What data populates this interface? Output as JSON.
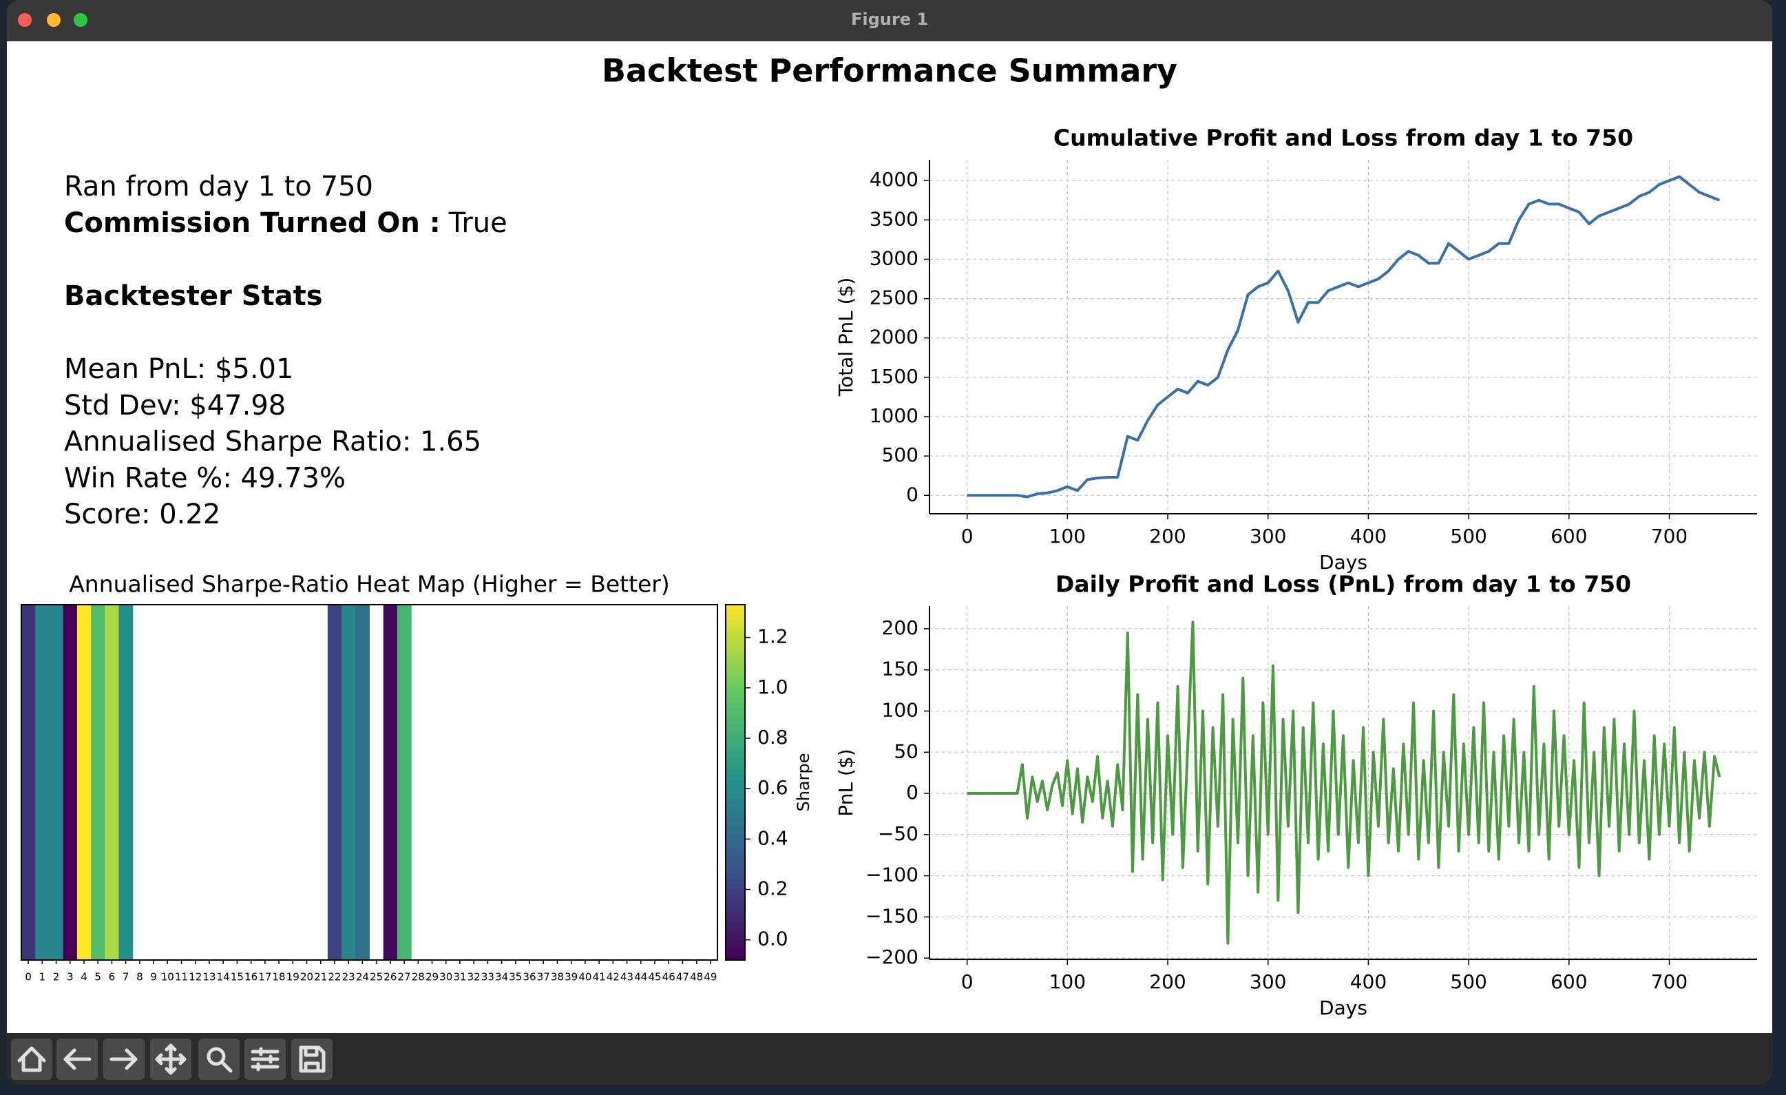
{
  "window": {
    "title": "Figure 1"
  },
  "figure": {
    "title": "Backtest Performance Summary"
  },
  "summary": {
    "run": "Ran from day 1 to 750",
    "commission_label": "Commission Turned On :",
    "commission_value": "True",
    "stats_title": "Backtester Stats",
    "stats": [
      "Mean PnL: $5.01",
      "Std Dev: $47.98",
      "Annualised Sharpe Ratio: 1.65",
      "Win Rate %: 49.73%",
      "Score: 0.22"
    ]
  },
  "chart_data": [
    {
      "type": "heatmap",
      "title": "Annualised Sharpe-Ratio Heat Map (Higher = Better)",
      "categories": [
        0,
        1,
        2,
        3,
        4,
        5,
        6,
        7,
        8,
        9,
        10,
        11,
        12,
        13,
        14,
        15,
        16,
        17,
        18,
        19,
        20,
        21,
        22,
        23,
        24,
        25,
        26,
        27,
        28,
        29,
        30,
        31,
        32,
        33,
        34,
        35,
        36,
        37,
        38,
        39,
        40,
        41,
        42,
        43,
        44,
        45,
        46,
        47,
        48,
        49
      ],
      "values": [
        0.15,
        0.55,
        0.55,
        -0.08,
        1.33,
        0.9,
        1.15,
        0.6,
        null,
        null,
        null,
        null,
        null,
        null,
        null,
        null,
        null,
        null,
        null,
        null,
        null,
        null,
        0.2,
        0.55,
        0.45,
        null,
        -0.05,
        0.85,
        null,
        null,
        null,
        null,
        null,
        null,
        null,
        null,
        null,
        null,
        null,
        null,
        null,
        null,
        null,
        null,
        null,
        null,
        null,
        null,
        null,
        null
      ],
      "colormap": "viridis",
      "clim": [
        -0.08,
        1.33
      ],
      "colorbar_label": "Sharpe",
      "colorbar_ticks": [
        {
          "value": 0,
          "label": "0.0"
        },
        0.2,
        0.4,
        0.6,
        0.8,
        {
          "value": 1,
          "label": "1.0"
        },
        1.2
      ]
    },
    {
      "type": "line",
      "title": "Cumulative Profit and Loss from day 1 to 750",
      "xlabel": "Days",
      "ylabel": "Total PnL ($)",
      "color": "#3a70a8",
      "grid": true,
      "x": [
        0,
        10,
        20,
        30,
        40,
        50,
        60,
        70,
        80,
        90,
        100,
        110,
        120,
        130,
        140,
        150,
        160,
        170,
        180,
        190,
        200,
        210,
        220,
        230,
        240,
        250,
        260,
        270,
        280,
        290,
        300,
        310,
        320,
        330,
        340,
        350,
        360,
        370,
        380,
        390,
        400,
        410,
        420,
        430,
        440,
        450,
        460,
        470,
        480,
        490,
        500,
        510,
        520,
        530,
        540,
        550,
        560,
        570,
        580,
        590,
        600,
        610,
        620,
        630,
        640,
        650,
        660,
        670,
        680,
        690,
        700,
        710,
        720,
        730,
        740,
        750
      ],
      "values": [
        0,
        0,
        0,
        0,
        0,
        0,
        -20,
        20,
        30,
        60,
        110,
        60,
        200,
        220,
        230,
        230,
        750,
        700,
        950,
        1150,
        1250,
        1350,
        1300,
        1450,
        1400,
        1500,
        1850,
        2100,
        2550,
        2650,
        2700,
        2850,
        2600,
        2200,
        2450,
        2450,
        2600,
        2650,
        2700,
        2650,
        2700,
        2750,
        2850,
        3000,
        3100,
        3050,
        2950,
        2950,
        3200,
        3100,
        3000,
        3050,
        3100,
        3200,
        3200,
        3500,
        3700,
        3750,
        3700,
        3700,
        3650,
        3600,
        3450,
        3550,
        3600,
        3650,
        3700,
        3800,
        3850,
        3950,
        4000,
        4050,
        3950,
        3850,
        3800,
        3750
      ],
      "xlim": [
        -37.5,
        787.5
      ],
      "ylim": [
        -234,
        4264
      ],
      "xticks": [
        0,
        100,
        200,
        300,
        400,
        500,
        600,
        700
      ],
      "yticks": [
        0,
        500,
        1000,
        1500,
        2000,
        2500,
        3000,
        3500,
        4000
      ]
    },
    {
      "type": "line",
      "title": "Daily Profit and Loss (PnL) from day 1 to 750",
      "xlabel": "Days",
      "ylabel": "PnL ($)",
      "color": "#4e9a43",
      "grid": true,
      "x": [
        0,
        5,
        10,
        15,
        20,
        25,
        30,
        35,
        40,
        45,
        50,
        55,
        60,
        65,
        70,
        75,
        80,
        85,
        90,
        95,
        100,
        105,
        110,
        115,
        120,
        125,
        130,
        135,
        140,
        145,
        150,
        155,
        160,
        165,
        170,
        175,
        180,
        185,
        190,
        195,
        200,
        205,
        210,
        215,
        220,
        225,
        230,
        235,
        240,
        245,
        250,
        255,
        260,
        265,
        270,
        275,
        280,
        285,
        290,
        295,
        300,
        305,
        310,
        315,
        320,
        325,
        330,
        335,
        340,
        345,
        350,
        355,
        360,
        365,
        370,
        375,
        380,
        385,
        390,
        395,
        400,
        405,
        410,
        415,
        420,
        425,
        430,
        435,
        440,
        445,
        450,
        455,
        460,
        465,
        470,
        475,
        480,
        485,
        490,
        495,
        500,
        505,
        510,
        515,
        520,
        525,
        530,
        535,
        540,
        545,
        550,
        555,
        560,
        565,
        570,
        575,
        580,
        585,
        590,
        595,
        600,
        605,
        610,
        615,
        620,
        625,
        630,
        635,
        640,
        645,
        650,
        655,
        660,
        665,
        670,
        675,
        680,
        685,
        690,
        695,
        700,
        705,
        710,
        715,
        720,
        725,
        730,
        735,
        740,
        745,
        750
      ],
      "values": [
        0,
        0,
        0,
        0,
        0,
        0,
        0,
        0,
        0,
        0,
        0,
        35,
        -30,
        20,
        -10,
        15,
        -20,
        10,
        25,
        -15,
        40,
        -25,
        30,
        -35,
        20,
        -10,
        45,
        -30,
        15,
        -40,
        35,
        -20,
        195,
        -95,
        120,
        -80,
        90,
        -60,
        110,
        -105,
        70,
        -50,
        130,
        -90,
        60,
        208,
        -70,
        100,
        -110,
        80,
        -40,
        120,
        -182,
        90,
        -60,
        140,
        -100,
        70,
        -120,
        110,
        -50,
        155,
        -130,
        90,
        -40,
        100,
        -145,
        80,
        -60,
        110,
        -80,
        60,
        -70,
        100,
        -50,
        70,
        -90,
        40,
        -60,
        80,
        -100,
        50,
        -40,
        90,
        -60,
        30,
        -70,
        60,
        -50,
        110,
        -80,
        40,
        -60,
        100,
        -90,
        50,
        -40,
        120,
        -70,
        60,
        -50,
        80,
        -60,
        110,
        -70,
        50,
        -80,
        70,
        -40,
        90,
        -60,
        50,
        -70,
        130,
        -50,
        60,
        -80,
        100,
        -40,
        70,
        -50,
        40,
        -90,
        110,
        -60,
        50,
        -100,
        80,
        -40,
        90,
        -70,
        60,
        -50,
        100,
        -60,
        40,
        -80,
        70,
        -50,
        60,
        -40,
        80,
        -60,
        50,
        -70,
        40,
        -30,
        50,
        -40,
        45,
        20
      ],
      "xlim": [
        -37.5,
        787.5
      ],
      "ylim": [
        -201.5,
        227.5
      ],
      "xticks": [
        0,
        100,
        200,
        300,
        400,
        500,
        600,
        700
      ],
      "yticks": [
        {
          "value": -200,
          "label": "−200"
        },
        {
          "value": -150,
          "label": "−150"
        },
        {
          "value": -100,
          "label": "−100"
        },
        {
          "value": -50,
          "label": "−50"
        },
        0,
        50,
        100,
        150,
        200
      ]
    }
  ]
}
